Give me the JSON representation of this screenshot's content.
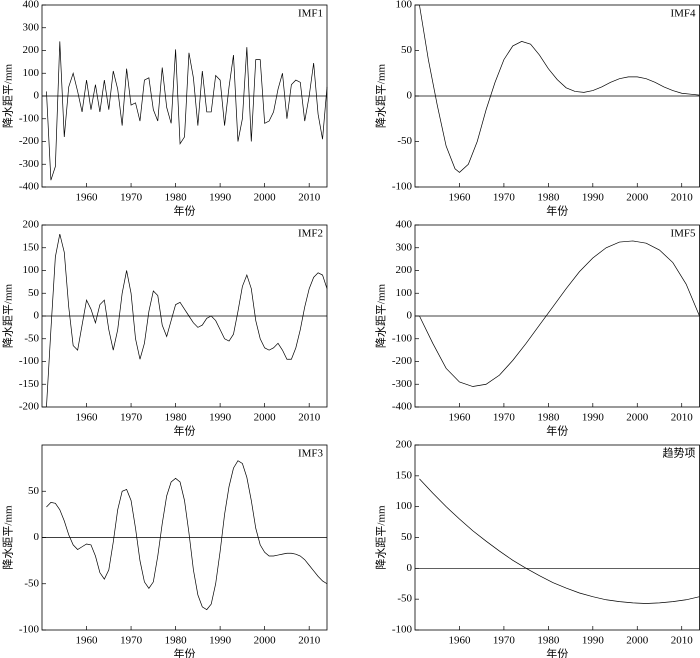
{
  "chart_data": [
    {
      "type": "line",
      "title": "IMF1",
      "xlabel": "年份",
      "ylabel": "降水距平/mm",
      "xlim": [
        1950,
        2014
      ],
      "xticks": [
        1960,
        1970,
        1980,
        1990,
        2000,
        2010
      ],
      "ylim": [
        -400,
        400
      ],
      "yticks": [
        -400,
        -300,
        -200,
        -100,
        0,
        100,
        200,
        300,
        400
      ],
      "x": [
        1951,
        1952,
        1953,
        1954,
        1955,
        1956,
        1957,
        1958,
        1959,
        1960,
        1961,
        1962,
        1963,
        1964,
        1965,
        1966,
        1967,
        1968,
        1969,
        1970,
        1971,
        1972,
        1973,
        1974,
        1975,
        1976,
        1977,
        1978,
        1979,
        1980,
        1981,
        1982,
        1983,
        1984,
        1985,
        1986,
        1987,
        1988,
        1989,
        1990,
        1991,
        1992,
        1993,
        1994,
        1995,
        1996,
        1997,
        1998,
        1999,
        2000,
        2001,
        2002,
        2003,
        2004,
        2005,
        2006,
        2007,
        2008,
        2009,
        2010,
        2011,
        2012,
        2013,
        2014
      ],
      "series": [
        {
          "name": "IMF1",
          "color": "#000000",
          "values": [
            20,
            -370,
            -310,
            240,
            -180,
            40,
            100,
            20,
            -70,
            70,
            -60,
            50,
            -70,
            70,
            -60,
            110,
            30,
            -130,
            120,
            -40,
            -30,
            -110,
            70,
            80,
            -60,
            -110,
            125,
            -50,
            -120,
            205,
            -210,
            -180,
            190,
            80,
            -130,
            110,
            -70,
            -70,
            90,
            70,
            -130,
            40,
            180,
            -200,
            -100,
            215,
            -200,
            160,
            160,
            -120,
            -110,
            -70,
            30,
            100,
            -100,
            50,
            70,
            60,
            -110,
            0,
            145,
            -80,
            -190,
            40
          ]
        }
      ]
    },
    {
      "type": "line",
      "title": "IMF4",
      "xlabel": "年份",
      "ylabel": "降水距平/mm",
      "xlim": [
        1950,
        2014
      ],
      "xticks": [
        1960,
        1970,
        1980,
        1990,
        2000,
        2010
      ],
      "ylim": [
        -100,
        100
      ],
      "yticks": [
        -100,
        -50,
        0,
        50,
        100
      ],
      "x": [
        1951,
        1953,
        1955,
        1957,
        1959,
        1960,
        1962,
        1964,
        1966,
        1968,
        1970,
        1972,
        1974,
        1976,
        1978,
        1980,
        1982,
        1984,
        1986,
        1988,
        1990,
        1992,
        1994,
        1996,
        1998,
        2000,
        2002,
        2004,
        2006,
        2008,
        2010,
        2012,
        2014
      ],
      "series": [
        {
          "name": "IMF4",
          "color": "#000000",
          "values": [
            100,
            40,
            -10,
            -55,
            -80,
            -84,
            -75,
            -50,
            -15,
            15,
            40,
            55,
            60,
            57,
            45,
            30,
            18,
            9,
            5,
            4,
            6,
            10,
            15,
            19,
            21,
            21,
            19,
            15,
            10,
            6,
            3,
            2,
            1
          ]
        }
      ]
    },
    {
      "type": "line",
      "title": "IMF2",
      "xlabel": "年份",
      "ylabel": "降水距平/mm",
      "xlim": [
        1950,
        2014
      ],
      "xticks": [
        1960,
        1970,
        1980,
        1990,
        2000,
        2010
      ],
      "ylim": [
        -200,
        200
      ],
      "yticks": [
        -200,
        -150,
        -100,
        -50,
        0,
        50,
        100,
        150,
        200
      ],
      "x": [
        1951,
        1952,
        1953,
        1954,
        1955,
        1956,
        1957,
        1958,
        1959,
        1960,
        1961,
        1962,
        1963,
        1964,
        1965,
        1966,
        1967,
        1968,
        1969,
        1970,
        1971,
        1972,
        1973,
        1974,
        1975,
        1976,
        1977,
        1978,
        1979,
        1980,
        1981,
        1982,
        1983,
        1984,
        1985,
        1986,
        1987,
        1988,
        1989,
        1990,
        1991,
        1992,
        1993,
        1994,
        1995,
        1996,
        1997,
        1998,
        1999,
        2000,
        2001,
        2002,
        2003,
        2004,
        2005,
        2006,
        2007,
        2008,
        2009,
        2010,
        2011,
        2012,
        2013,
        2014
      ],
      "series": [
        {
          "name": "IMF2",
          "color": "#000000",
          "values": [
            -200,
            -30,
            130,
            180,
            140,
            20,
            -65,
            -75,
            -20,
            35,
            15,
            -15,
            25,
            35,
            -30,
            -75,
            -30,
            50,
            100,
            50,
            -50,
            -95,
            -60,
            10,
            55,
            45,
            -20,
            -45,
            -10,
            25,
            30,
            15,
            0,
            -15,
            -25,
            -20,
            -5,
            0,
            -10,
            -30,
            -50,
            -55,
            -40,
            10,
            65,
            90,
            60,
            -10,
            -50,
            -70,
            -75,
            -70,
            -60,
            -75,
            -95,
            -95,
            -70,
            -30,
            20,
            60,
            85,
            95,
            90,
            60
          ]
        }
      ]
    },
    {
      "type": "line",
      "title": "IMF5",
      "xlabel": "年份",
      "ylabel": "降水距平/mm",
      "xlim": [
        1950,
        2014
      ],
      "xticks": [
        1960,
        1970,
        1980,
        1990,
        2000,
        2010
      ],
      "ylim": [
        -400,
        400
      ],
      "yticks": [
        -400,
        -300,
        -200,
        -100,
        0,
        100,
        200,
        300,
        400
      ],
      "x": [
        1951,
        1954,
        1957,
        1960,
        1963,
        1966,
        1969,
        1972,
        1975,
        1978,
        1981,
        1984,
        1987,
        1990,
        1993,
        1996,
        1999,
        2002,
        2005,
        2008,
        2011,
        2014
      ],
      "series": [
        {
          "name": "IMF5",
          "color": "#000000",
          "values": [
            0,
            -120,
            -230,
            -290,
            -310,
            -300,
            -260,
            -195,
            -120,
            -40,
            40,
            120,
            195,
            255,
            300,
            325,
            330,
            320,
            290,
            235,
            140,
            0
          ]
        }
      ]
    },
    {
      "type": "line",
      "title": "IMF3",
      "xlabel": "年份",
      "ylabel": "降水距平/mm",
      "xlim": [
        1950,
        2014
      ],
      "xticks": [
        1960,
        1970,
        1980,
        1990,
        2000,
        2010
      ],
      "ylim": [
        -100,
        100
      ],
      "yticks": [
        -100,
        -50,
        0,
        50
      ],
      "x": [
        1951,
        1952,
        1953,
        1954,
        1955,
        1956,
        1957,
        1958,
        1959,
        1960,
        1961,
        1962,
        1963,
        1964,
        1965,
        1966,
        1967,
        1968,
        1969,
        1970,
        1971,
        1972,
        1973,
        1974,
        1975,
        1976,
        1977,
        1978,
        1979,
        1980,
        1981,
        1982,
        1983,
        1984,
        1985,
        1986,
        1987,
        1988,
        1989,
        1990,
        1991,
        1992,
        1993,
        1994,
        1995,
        1996,
        1997,
        1998,
        1999,
        2000,
        2001,
        2002,
        2003,
        2004,
        2005,
        2006,
        2007,
        2008,
        2009,
        2010,
        2011,
        2012,
        2013,
        2014
      ],
      "series": [
        {
          "name": "IMF3",
          "color": "#000000",
          "values": [
            33,
            38,
            37,
            30,
            18,
            3,
            -8,
            -13,
            -10,
            -7,
            -8,
            -20,
            -38,
            -45,
            -35,
            -5,
            30,
            50,
            52,
            40,
            10,
            -25,
            -48,
            -55,
            -48,
            -20,
            15,
            45,
            60,
            64,
            60,
            40,
            5,
            -35,
            -62,
            -75,
            -78,
            -72,
            -50,
            -15,
            25,
            55,
            75,
            83,
            80,
            65,
            40,
            10,
            -8,
            -16,
            -20,
            -20,
            -19,
            -18,
            -17,
            -17,
            -18,
            -20,
            -24,
            -30,
            -36,
            -42,
            -47,
            -50
          ]
        }
      ]
    },
    {
      "type": "line",
      "title": "趋势项",
      "xlabel": "年份",
      "ylabel": "降水距平/mm",
      "xlim": [
        1950,
        2014
      ],
      "xticks": [
        1960,
        1970,
        1980,
        1990,
        2000,
        2010
      ],
      "ylim": [
        -100,
        200
      ],
      "yticks": [
        -100,
        -50,
        0,
        50,
        100,
        150,
        200
      ],
      "x": [
        1951,
        1954,
        1957,
        1960,
        1963,
        1966,
        1969,
        1972,
        1975,
        1978,
        1981,
        1984,
        1987,
        1990,
        1993,
        1996,
        1999,
        2002,
        2005,
        2008,
        2011,
        2014
      ],
      "series": [
        {
          "name": "趋势项",
          "color": "#000000",
          "values": [
            145,
            122,
            100,
            80,
            61,
            44,
            28,
            13,
            0,
            -12,
            -23,
            -32,
            -40,
            -46,
            -51,
            -54,
            -56,
            -57,
            -56,
            -54,
            -51,
            -46
          ]
        }
      ]
    }
  ]
}
